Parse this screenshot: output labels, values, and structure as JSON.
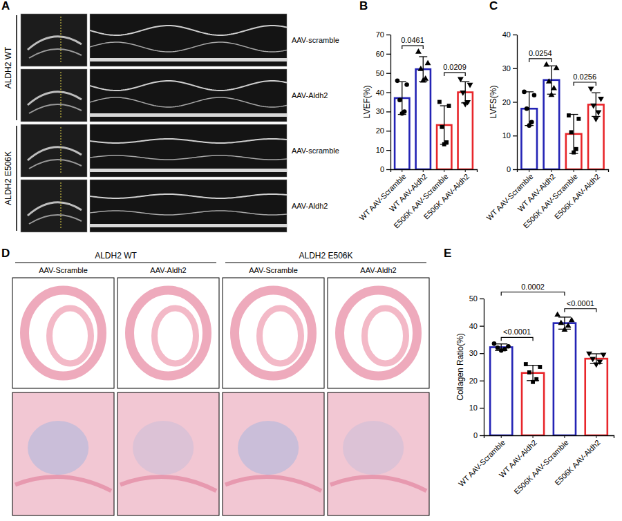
{
  "panels": {
    "A": {
      "panel": "A",
      "groups": [
        {
          "label": "ALDH2 WT",
          "rows": [
            "AAV-scramble",
            "AAV-Aldh2"
          ]
        },
        {
          "label": "ALDH2 E506K",
          "rows": [
            "AAV-scramble",
            "AAV-Aldh2"
          ]
        }
      ]
    },
    "D": {
      "panel": "D",
      "groups": [
        {
          "label": "ALDH2 WT",
          "columns": [
            "AAV-Scramble",
            "AAV-Aldh2"
          ]
        },
        {
          "label": "ALDH2 E506K",
          "columns": [
            "AAV-Scramble",
            "AAV-Aldh2"
          ]
        }
      ]
    }
  },
  "chart_data": [
    {
      "type": "bar",
      "panel": "B",
      "y_label": "LVEF(%)",
      "categories": [
        "WT AAV-Scramble",
        "WT AAV-Aldh2",
        "E506K AAV-Scramble",
        "E506K AAV-Aldh2"
      ],
      "values": [
        37,
        52,
        23,
        40
      ],
      "errors": [
        8.5,
        6.5,
        10,
        5.5
      ],
      "points": [
        [
          46,
          44,
          36,
          30,
          29
        ],
        [
          61,
          55,
          52,
          47,
          46
        ],
        [
          35,
          33,
          22,
          14,
          13
        ],
        [
          47,
          44,
          40,
          35,
          34
        ]
      ],
      "colors": [
        "#2323b5",
        "#2323b5",
        "#e8262b",
        "#e8262b"
      ],
      "marker": [
        "circle",
        "triangle-up",
        "square",
        "triangle-down"
      ],
      "ylim": [
        0,
        70
      ],
      "yticks": [
        0,
        10,
        20,
        30,
        40,
        50,
        60,
        70
      ],
      "annotations": [
        {
          "text": "0.0461",
          "between": [
            "WT AAV-Scramble",
            "WT AAV-Aldh2"
          ]
        },
        {
          "text": "0.0209",
          "between": [
            "E506K AAV-Scramble",
            "E506K AAV-Aldh2"
          ]
        }
      ]
    },
    {
      "type": "bar",
      "panel": "C",
      "y_label": "LVFS(%)",
      "categories": [
        "WT AAV-Scramble",
        "WT AAV-Aldh2",
        "E506K AAV-Scramble",
        "E506K AAV-Aldh2"
      ],
      "values": [
        18,
        26.5,
        10.5,
        19.2
      ],
      "errors": [
        5,
        4.2,
        5.8,
        3.5
      ],
      "points": [
        [
          23,
          22,
          18,
          14,
          13
        ],
        [
          31,
          30,
          26,
          24,
          22
        ],
        [
          16,
          15,
          11,
          6,
          5
        ],
        [
          24,
          21,
          19,
          17,
          15
        ]
      ],
      "colors": [
        "#2323b5",
        "#2323b5",
        "#e8262b",
        "#e8262b"
      ],
      "marker": [
        "circle",
        "triangle-up",
        "square",
        "triangle-down"
      ],
      "ylim": [
        0,
        40
      ],
      "yticks": [
        0,
        10,
        20,
        30,
        40
      ],
      "annotations": [
        {
          "text": "0.0254",
          "between": [
            "WT AAV-Scramble",
            "WT AAV-Aldh2"
          ]
        },
        {
          "text": "0.0256",
          "between": [
            "E506K AAV-Scramble",
            "E506K AAV-Aldh2"
          ]
        }
      ]
    },
    {
      "type": "bar",
      "panel": "E",
      "y_label": "Collagen Ratio(%)",
      "categories": [
        "WT AAV-Scramble",
        "WT AAV-Aldh2",
        "E506K AAV-Scramble",
        "E506K AAV-Aldh2"
      ],
      "values": [
        32.2,
        22.8,
        41,
        28
      ],
      "errors": [
        1.2,
        2.8,
        2.2,
        1.8
      ],
      "points": [
        [
          33.5,
          32.5,
          32,
          31.5,
          31
        ],
        [
          26,
          25,
          23,
          20.5,
          19.5
        ],
        [
          44,
          42,
          41,
          40,
          38.5
        ],
        [
          30,
          29.5,
          28,
          27,
          26
        ]
      ],
      "colors": [
        "#2323b5",
        "#e8262b",
        "#2323b5",
        "#e8262b"
      ],
      "marker": [
        "circle",
        "square",
        "triangle-up",
        "triangle-down"
      ],
      "ylim": [
        0,
        50
      ],
      "yticks": [
        0,
        10,
        20,
        30,
        40,
        50
      ],
      "annotations": [
        {
          "text": "<0.0001",
          "between": [
            "WT AAV-Scramble",
            "WT AAV-Aldh2"
          ]
        },
        {
          "text": "<0.0001",
          "between": [
            "E506K AAV-Scramble",
            "E506K AAV-Aldh2"
          ]
        },
        {
          "text": "0.0002",
          "between": [
            "WT AAV-Scramble",
            "E506K AAV-Scramble"
          ]
        }
      ]
    }
  ]
}
